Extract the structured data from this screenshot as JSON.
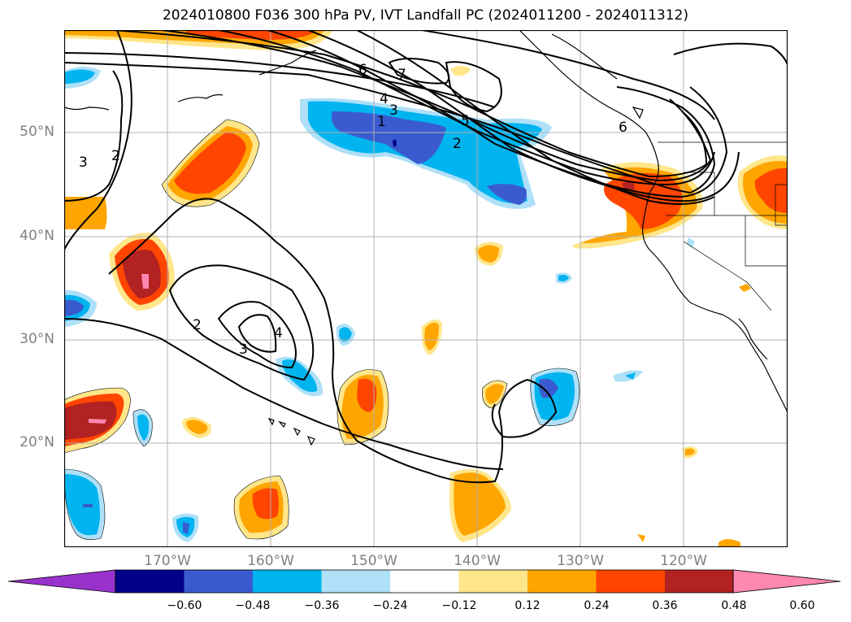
{
  "title": "2024010800 F036 300 hPa PV, IVT Landfall PC (2024011200 - 2024011312)",
  "map": {
    "lon_range": [
      -180,
      -110
    ],
    "lat_range": [
      10,
      60
    ],
    "lat_ticks": [
      {
        "value": 50,
        "label": "50°N"
      },
      {
        "value": 40,
        "label": "40°N"
      },
      {
        "value": 30,
        "label": "30°N"
      },
      {
        "value": 20,
        "label": "20°N"
      }
    ],
    "lon_ticks": [
      {
        "value": -170,
        "label": "170°W"
      },
      {
        "value": -160,
        "label": "160°W"
      },
      {
        "value": -150,
        "label": "150°W"
      },
      {
        "value": -140,
        "label": "140°W"
      },
      {
        "value": -130,
        "label": "130°W"
      },
      {
        "value": -120,
        "label": "120°W"
      }
    ],
    "grid": true,
    "contour_labels": [
      "7",
      "6",
      "5",
      "4",
      "3",
      "2",
      "1",
      "3",
      "2",
      "4",
      "2",
      "3",
      "6"
    ]
  },
  "colorbar": {
    "ticks": [
      "−0.60",
      "−0.48",
      "−0.36",
      "−0.24",
      "−0.12",
      "0.12",
      "0.24",
      "0.36",
      "0.48",
      "0.60"
    ],
    "colors": [
      "#9932cc",
      "#00008b",
      "#3a5bd0",
      "#00b4f0",
      "#aee0f8",
      "#ffffff",
      "#ffe68a",
      "#ffa500",
      "#ff4500",
      "#b22222",
      "#ff88b0"
    ]
  }
}
